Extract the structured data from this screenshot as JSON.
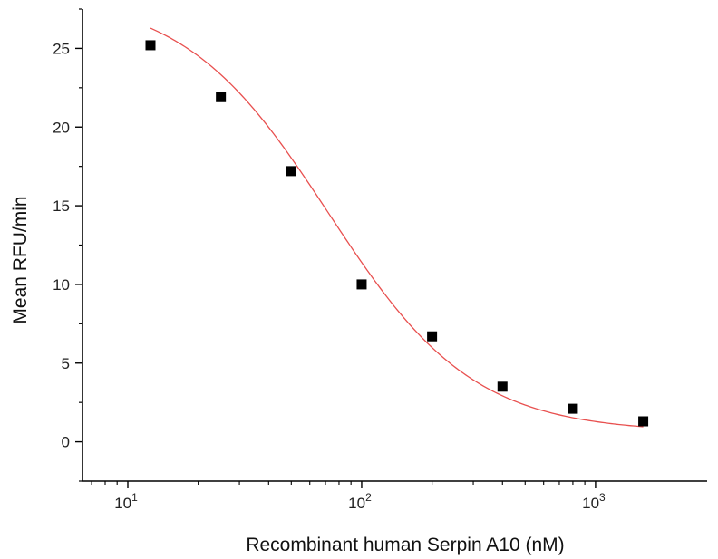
{
  "chart_data": {
    "type": "scatter",
    "title": "",
    "xlabel": "Recombinant human Serpin A10 (nM)",
    "ylabel": "Mean RFU/min",
    "x_scale": "log",
    "xlim": [
      6.4,
      3000
    ],
    "ylim": [
      -2.5,
      27.5
    ],
    "x_ticks": [
      {
        "base": "10",
        "exp": "1",
        "value": 10
      },
      {
        "base": "10",
        "exp": "2",
        "value": 100
      },
      {
        "base": "10",
        "exp": "3",
        "value": 1000
      }
    ],
    "y_ticks": [
      0,
      5,
      10,
      15,
      20,
      25
    ],
    "y_tick_labels": [
      "0",
      "5",
      "10",
      "15",
      "20",
      "25"
    ],
    "grid": false,
    "series": [
      {
        "marker": "square",
        "color": "#000000",
        "x": [
          12.5,
          25,
          50,
          100,
          200,
          400,
          800,
          1600
        ],
        "y": [
          25.2,
          21.9,
          17.2,
          10.0,
          6.7,
          3.5,
          2.1,
          1.3
        ]
      }
    ],
    "fit_curve": {
      "color": "#e8504f",
      "model": "four-parameter logistic",
      "bottom": 0.6,
      "top": 28.5,
      "ec50": 72,
      "hill": 1.4,
      "x_range": [
        12.5,
        1600
      ]
    }
  }
}
